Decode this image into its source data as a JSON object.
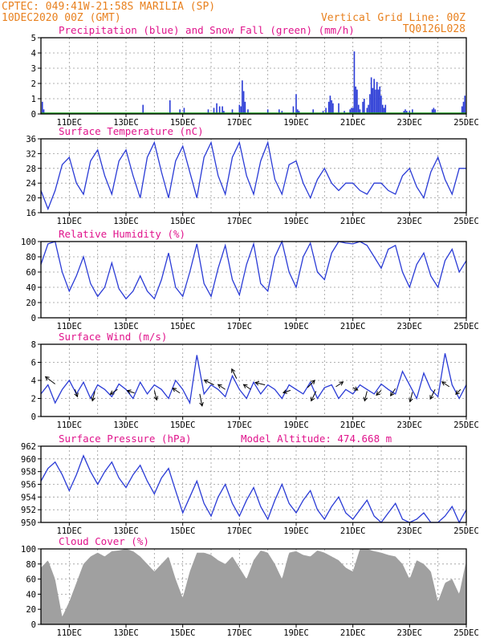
{
  "header": {
    "line1_left": "CPTEC:  049:41W-21:58S  MARILIA (SP)",
    "line2_left": "10DEC2020 00Z (GMT)",
    "line2_right": "Vertical Grid Line: 00Z",
    "line3_right": "TQ0126L028"
  },
  "colors": {
    "header": "#e8801e",
    "title": "#e0148c",
    "series": "#2a3bd6",
    "snow": "#1a9e1a",
    "cloud": "#a0a0a0",
    "arrow": "#000000"
  },
  "chart_data": [
    {
      "id": "precip",
      "type": "bar",
      "title": "Precipitation (blue) and Snow Fall (green) (mm/h)",
      "xlabels": [
        "11DEC",
        "13DEC",
        "15DEC",
        "17DEC",
        "19DEC",
        "21DEC",
        "23DEC",
        "25DEC"
      ],
      "ylim": [
        0,
        5
      ],
      "yticks": [
        0,
        1,
        2,
        3,
        4,
        5
      ],
      "grid": true,
      "x_day_range": [
        10,
        25
      ],
      "snow_value": 0,
      "bars": [
        [
          10.05,
          0.8
        ],
        [
          10.1,
          0.3
        ],
        [
          13.6,
          0.6
        ],
        [
          14.55,
          0.9
        ],
        [
          14.9,
          0.3
        ],
        [
          15.05,
          0.4
        ],
        [
          15.9,
          0.3
        ],
        [
          16.1,
          0.4
        ],
        [
          16.2,
          0.7
        ],
        [
          16.3,
          0.5
        ],
        [
          16.4,
          0.5
        ],
        [
          16.45,
          0.2
        ],
        [
          16.75,
          0.3
        ],
        [
          17.0,
          0.6
        ],
        [
          17.05,
          0.5
        ],
        [
          17.1,
          2.2
        ],
        [
          17.15,
          1.5
        ],
        [
          17.2,
          0.8
        ],
        [
          17.3,
          0.3
        ],
        [
          18.0,
          0.3
        ],
        [
          18.4,
          0.3
        ],
        [
          18.5,
          0.2
        ],
        [
          18.9,
          0.5
        ],
        [
          19.0,
          1.3
        ],
        [
          19.05,
          0.3
        ],
        [
          19.1,
          0.2
        ],
        [
          19.6,
          0.3
        ],
        [
          19.95,
          0.2
        ],
        [
          20.05,
          0.4
        ],
        [
          20.15,
          0.8
        ],
        [
          20.2,
          1.2
        ],
        [
          20.25,
          0.9
        ],
        [
          20.3,
          0.7
        ],
        [
          20.5,
          0.7
        ],
        [
          20.7,
          0.2
        ],
        [
          20.9,
          0.3
        ],
        [
          20.95,
          0.4
        ],
        [
          21.0,
          0.4
        ],
        [
          21.05,
          4.1
        ],
        [
          21.1,
          1.8
        ],
        [
          21.15,
          1.6
        ],
        [
          21.2,
          0.6
        ],
        [
          21.25,
          0.3
        ],
        [
          21.35,
          0.8
        ],
        [
          21.4,
          1.0
        ],
        [
          21.5,
          0.4
        ],
        [
          21.55,
          0.6
        ],
        [
          21.6,
          1.3
        ],
        [
          21.65,
          2.4
        ],
        [
          21.7,
          1.7
        ],
        [
          21.75,
          2.3
        ],
        [
          21.8,
          1.6
        ],
        [
          21.85,
          2.1
        ],
        [
          21.9,
          1.6
        ],
        [
          21.95,
          1.8
        ],
        [
          22.0,
          1.2
        ],
        [
          22.05,
          0.6
        ],
        [
          22.1,
          0.4
        ],
        [
          22.15,
          0.6
        ],
        [
          22.8,
          0.2
        ],
        [
          22.85,
          0.3
        ],
        [
          22.9,
          0.2
        ],
        [
          23.0,
          0.2
        ],
        [
          23.1,
          0.3
        ],
        [
          23.8,
          0.3
        ],
        [
          23.85,
          0.4
        ],
        [
          23.9,
          0.3
        ],
        [
          24.85,
          0.5
        ],
        [
          24.9,
          0.8
        ],
        [
          24.95,
          1.2
        ]
      ]
    },
    {
      "id": "temp",
      "type": "line",
      "title": "Surface Temperature (nC)",
      "xlabels": [
        "11DEC",
        "13DEC",
        "15DEC",
        "17DEC",
        "19DEC",
        "21DEC",
        "23DEC",
        "25DEC"
      ],
      "ylim": [
        16,
        36
      ],
      "yticks": [
        16,
        20,
        24,
        28,
        32,
        36
      ],
      "grid": true,
      "x_day_range": [
        10,
        25
      ],
      "x": [
        10.0,
        10.25,
        10.5,
        10.75,
        11.0,
        11.25,
        11.5,
        11.75,
        12.0,
        12.25,
        12.5,
        12.75,
        13.0,
        13.25,
        13.5,
        13.75,
        14.0,
        14.25,
        14.5,
        14.75,
        15.0,
        15.25,
        15.5,
        15.75,
        16.0,
        16.25,
        16.5,
        16.75,
        17.0,
        17.25,
        17.5,
        17.75,
        18.0,
        18.25,
        18.5,
        18.75,
        19.0,
        19.25,
        19.5,
        19.75,
        20.0,
        20.25,
        20.5,
        20.75,
        21.0,
        21.25,
        21.5,
        21.75,
        22.0,
        22.25,
        22.5,
        22.75,
        23.0,
        23.25,
        23.5,
        23.75,
        24.0,
        24.25,
        24.5,
        24.75,
        25.0
      ],
      "y": [
        22,
        17,
        22,
        29,
        31,
        24,
        21,
        30,
        33,
        26,
        21,
        30,
        33,
        26,
        20,
        31,
        35,
        27,
        20,
        30,
        34,
        27,
        20,
        31,
        35,
        26,
        21,
        31,
        35,
        26,
        21,
        30,
        35,
        25,
        21,
        29,
        30,
        24,
        20,
        25,
        28,
        24,
        22,
        24,
        24,
        22,
        21,
        24,
        24,
        22,
        21,
        26,
        28,
        23,
        20,
        27,
        31,
        25,
        21,
        28,
        28
      ]
    },
    {
      "id": "rh",
      "type": "line",
      "title": "Relative Humidity (%)",
      "xlabels": [
        "11DEC",
        "13DEC",
        "15DEC",
        "17DEC",
        "19DEC",
        "21DEC",
        "23DEC",
        "25DEC"
      ],
      "ylim": [
        0,
        100
      ],
      "yticks": [
        0,
        20,
        40,
        60,
        80,
        100
      ],
      "grid": true,
      "x_day_range": [
        10,
        25
      ],
      "x": [
        10.0,
        10.25,
        10.5,
        10.75,
        11.0,
        11.25,
        11.5,
        11.75,
        12.0,
        12.25,
        12.5,
        12.75,
        13.0,
        13.25,
        13.5,
        13.75,
        14.0,
        14.25,
        14.5,
        14.75,
        15.0,
        15.25,
        15.5,
        15.75,
        16.0,
        16.25,
        16.5,
        16.75,
        17.0,
        17.25,
        17.5,
        17.75,
        18.0,
        18.25,
        18.5,
        18.75,
        19.0,
        19.25,
        19.5,
        19.75,
        20.0,
        20.25,
        20.5,
        20.75,
        21.0,
        21.25,
        21.5,
        21.75,
        22.0,
        22.25,
        22.5,
        22.75,
        23.0,
        23.25,
        23.5,
        23.75,
        24.0,
        24.25,
        24.5,
        24.75,
        25.0
      ],
      "y": [
        70,
        97,
        100,
        60,
        35,
        55,
        80,
        45,
        28,
        40,
        72,
        38,
        25,
        35,
        55,
        35,
        25,
        50,
        85,
        40,
        28,
        60,
        97,
        45,
        28,
        65,
        95,
        50,
        30,
        70,
        97,
        45,
        35,
        80,
        100,
        60,
        40,
        80,
        98,
        60,
        50,
        85,
        100,
        98,
        97,
        100,
        95,
        80,
        65,
        90,
        95,
        60,
        40,
        70,
        85,
        55,
        40,
        75,
        90,
        60,
        75
      ]
    },
    {
      "id": "wind",
      "type": "line",
      "title": "Surface Wind (m/s)",
      "xlabels": [
        "11DEC",
        "13DEC",
        "15DEC",
        "17DEC",
        "19DEC",
        "21DEC",
        "23DEC",
        "25DEC"
      ],
      "ylim": [
        0,
        8
      ],
      "yticks": [
        0,
        2,
        4,
        6,
        8
      ],
      "grid": true,
      "x_day_range": [
        10,
        25
      ],
      "x": [
        10.0,
        10.25,
        10.5,
        10.75,
        11.0,
        11.25,
        11.5,
        11.75,
        12.0,
        12.25,
        12.5,
        12.75,
        13.0,
        13.25,
        13.5,
        13.75,
        14.0,
        14.25,
        14.5,
        14.75,
        15.0,
        15.25,
        15.5,
        15.75,
        16.0,
        16.25,
        16.5,
        16.75,
        17.0,
        17.25,
        17.5,
        17.75,
        18.0,
        18.25,
        18.5,
        18.75,
        19.0,
        19.25,
        19.5,
        19.75,
        20.0,
        20.25,
        20.5,
        20.75,
        21.0,
        21.25,
        21.5,
        21.75,
        22.0,
        22.25,
        22.5,
        22.75,
        23.0,
        23.25,
        23.5,
        23.75,
        24.0,
        24.25,
        24.5,
        24.75,
        25.0
      ],
      "y": [
        2.5,
        3.5,
        1.5,
        3.0,
        4.0,
        2.5,
        3.8,
        2.0,
        3.5,
        3.0,
        2.2,
        3.6,
        3.0,
        2.0,
        3.8,
        2.5,
        3.5,
        3.0,
        2.0,
        4.0,
        3.0,
        1.5,
        6.8,
        2.5,
        3.5,
        3.0,
        2.2,
        4.5,
        3.0,
        2.0,
        3.8,
        2.5,
        3.5,
        3.0,
        2.0,
        3.5,
        3.0,
        2.5,
        3.8,
        2.0,
        3.2,
        3.5,
        2.0,
        3.0,
        2.5,
        3.5,
        3.0,
        2.5,
        3.6,
        3.0,
        2.5,
        5.0,
        3.5,
        2.0,
        4.8,
        3.0,
        2.2,
        7.0,
        3.5,
        2.0,
        3.5
      ],
      "arrows": [
        [
          10.5,
          3.6,
          -0.4,
          0.3
        ],
        [
          11.2,
          3.0,
          0.1,
          -0.3
        ],
        [
          11.9,
          2.8,
          -0.1,
          -0.4
        ],
        [
          12.7,
          3.0,
          -0.3,
          -0.2
        ],
        [
          13.3,
          2.6,
          -0.3,
          0.1
        ],
        [
          14.0,
          2.9,
          0.1,
          -0.4
        ],
        [
          14.9,
          2.6,
          -0.3,
          0.2
        ],
        [
          15.6,
          2.5,
          0.1,
          -0.5
        ],
        [
          16.1,
          3.5,
          -0.4,
          0.2
        ],
        [
          16.5,
          3.0,
          -0.3,
          0.2
        ],
        [
          16.9,
          4.2,
          -0.2,
          0.4
        ],
        [
          17.4,
          3.0,
          -0.3,
          0.2
        ],
        [
          17.9,
          3.5,
          -0.4,
          0.1
        ],
        [
          18.8,
          2.9,
          -0.3,
          -0.1
        ],
        [
          19.4,
          3.2,
          0.3,
          0.3
        ],
        [
          19.7,
          2.8,
          -0.2,
          -0.4
        ],
        [
          20.4,
          3.3,
          0.3,
          0.2
        ],
        [
          21.0,
          3.2,
          0.2,
          -0.1
        ],
        [
          21.5,
          2.8,
          -0.1,
          -0.4
        ],
        [
          22.0,
          2.9,
          -0.2,
          -0.2
        ],
        [
          22.5,
          3.1,
          -0.2,
          -0.3
        ],
        [
          23.1,
          2.7,
          -0.1,
          -0.4
        ],
        [
          23.9,
          3.0,
          -0.2,
          -0.4
        ],
        [
          24.4,
          3.3,
          -0.3,
          0.2
        ],
        [
          24.8,
          3.0,
          -0.2,
          -0.2
        ]
      ]
    },
    {
      "id": "press",
      "type": "line",
      "title": "Surface Pressure (hPa)",
      "annotation": "Model Altitude: 474.668 m",
      "xlabels": [
        "11DEC",
        "13DEC",
        "15DEC",
        "17DEC",
        "19DEC",
        "21DEC",
        "23DEC",
        "25DEC"
      ],
      "ylim": [
        950,
        962
      ],
      "yticks": [
        950,
        952,
        954,
        956,
        958,
        960,
        962
      ],
      "grid": true,
      "x_day_range": [
        10,
        25
      ],
      "x": [
        10.0,
        10.25,
        10.5,
        10.75,
        11.0,
        11.25,
        11.5,
        11.75,
        12.0,
        12.25,
        12.5,
        12.75,
        13.0,
        13.25,
        13.5,
        13.75,
        14.0,
        14.25,
        14.5,
        14.75,
        15.0,
        15.25,
        15.5,
        15.75,
        16.0,
        16.25,
        16.5,
        16.75,
        17.0,
        17.25,
        17.5,
        17.75,
        18.0,
        18.25,
        18.5,
        18.75,
        19.0,
        19.25,
        19.5,
        19.75,
        20.0,
        20.25,
        20.5,
        20.75,
        21.0,
        21.25,
        21.5,
        21.75,
        22.0,
        22.25,
        22.5,
        22.75,
        23.0,
        23.25,
        23.5,
        23.75,
        24.0,
        24.25,
        24.5,
        24.75,
        25.0
      ],
      "y": [
        956.5,
        958.5,
        959.5,
        957.5,
        955.0,
        957.5,
        960.5,
        958.0,
        956.0,
        958.0,
        959.5,
        957.0,
        955.5,
        957.5,
        959.0,
        956.5,
        954.5,
        957.0,
        958.5,
        955.0,
        951.5,
        954.0,
        956.5,
        953.0,
        951.0,
        954.0,
        956.0,
        953.0,
        951.0,
        953.5,
        955.5,
        952.5,
        950.5,
        953.5,
        956.0,
        953.0,
        951.5,
        953.5,
        955.0,
        952.0,
        950.5,
        952.5,
        954.0,
        951.5,
        950.5,
        952.0,
        953.5,
        951.0,
        950.0,
        951.5,
        953.0,
        950.5,
        950.0,
        950.5,
        951.5,
        950.0,
        950.0,
        951.0,
        952.5,
        950.0,
        952.0
      ]
    },
    {
      "id": "cloud",
      "type": "bar",
      "title": "Cloud Cover (%)",
      "xlabels": [
        "11DEC",
        "13DEC",
        "15DEC",
        "17DEC",
        "19DEC",
        "21DEC",
        "23DEC",
        "25DEC"
      ],
      "ylim": [
        0,
        100
      ],
      "yticks": [
        0,
        20,
        40,
        60,
        80,
        100
      ],
      "grid": true,
      "x_day_range": [
        10,
        25
      ],
      "x": [
        10.0,
        10.25,
        10.5,
        10.75,
        11.0,
        11.25,
        11.5,
        11.75,
        12.0,
        12.25,
        12.5,
        12.75,
        13.0,
        13.25,
        13.5,
        13.75,
        14.0,
        14.25,
        14.5,
        14.75,
        15.0,
        15.25,
        15.5,
        15.75,
        16.0,
        16.25,
        16.5,
        16.75,
        17.0,
        17.25,
        17.5,
        17.75,
        18.0,
        18.25,
        18.5,
        18.75,
        19.0,
        19.25,
        19.5,
        19.75,
        20.0,
        20.25,
        20.5,
        20.75,
        21.0,
        21.25,
        21.5,
        21.75,
        22.0,
        22.25,
        22.5,
        22.75,
        23.0,
        23.25,
        23.5,
        23.75,
        24.0,
        24.25,
        24.5,
        24.75,
        25.0
      ],
      "y": [
        75,
        85,
        60,
        10,
        30,
        55,
        80,
        90,
        95,
        90,
        97,
        98,
        100,
        97,
        90,
        80,
        70,
        80,
        90,
        60,
        35,
        70,
        95,
        95,
        92,
        85,
        80,
        90,
        75,
        60,
        85,
        98,
        95,
        80,
        60,
        95,
        97,
        92,
        90,
        98,
        95,
        90,
        85,
        75,
        70,
        100,
        100,
        97,
        95,
        92,
        90,
        80,
        60,
        85,
        80,
        70,
        30,
        55,
        60,
        40,
        85
      ]
    }
  ]
}
